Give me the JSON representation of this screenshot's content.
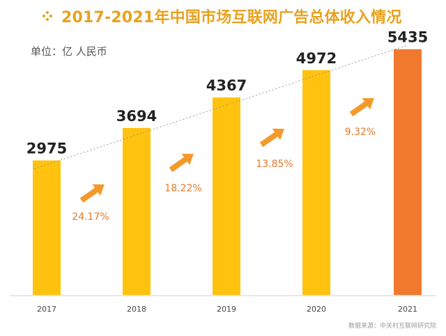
{
  "chart_data": {
    "type": "bar",
    "title": "2017-2021年中国市场互联网广告总体收入情况",
    "unit_label": "单位：亿 人民币",
    "categories": [
      "2017",
      "2018",
      "2019",
      "2020",
      "2021"
    ],
    "values": [
      2975,
      3694,
      4367,
      4972,
      5435
    ],
    "value_labels": [
      "2975",
      "3694",
      "4367",
      "4972",
      "5435"
    ],
    "growth_rates": [
      "24.17%",
      "18.22%",
      "13.85%",
      "9.32%"
    ],
    "source": "数据来源：中关村互联网研究院",
    "ylim": [
      0,
      5600
    ],
    "grid": false,
    "trend_line": true,
    "colors": {
      "bar": "#ffc20e",
      "highlight_bar": "#f0792d",
      "growth_text": "#e8792a",
      "arrow": "#f39a2a",
      "title": "#e8a21e"
    }
  }
}
